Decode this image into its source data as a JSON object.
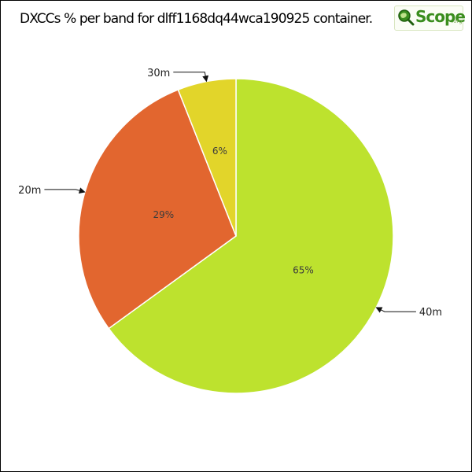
{
  "title": "DXCCs % per band for dlff1168dq44wca190925 container.",
  "logo": {
    "text": "Scope",
    "suffix": ".org"
  },
  "chart_data": {
    "type": "pie",
    "title": "DXCCs % per band for dlff1168dq44wca190925 container.",
    "slices": [
      {
        "label": "40m",
        "value": 65,
        "pct_label": "65%",
        "color": "#bde22e"
      },
      {
        "label": "20m",
        "value": 29,
        "pct_label": "29%",
        "color": "#e2662f"
      },
      {
        "label": "30m",
        "value": 6,
        "pct_label": "6%",
        "color": "#e2d52a"
      }
    ],
    "start": "12 o'clock",
    "direction": "clockwise"
  }
}
